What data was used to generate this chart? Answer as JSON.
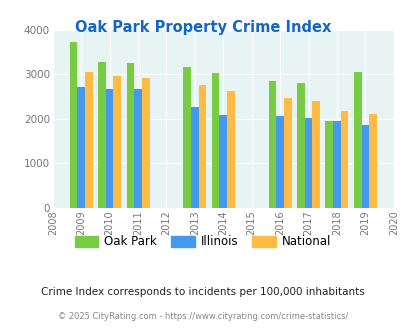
{
  "title": "Oak Park Property Crime Index",
  "subtitle": "Crime Index corresponds to incidents per 100,000 inhabitants",
  "footer": "© 2025 CityRating.com - https://www.cityrating.com/crime-statistics/",
  "years": [
    2009,
    2010,
    2011,
    2013,
    2014,
    2016,
    2017,
    2018,
    2019
  ],
  "oak_park": [
    3720,
    3280,
    3250,
    3160,
    3020,
    2850,
    2800,
    1940,
    3040
  ],
  "illinois": [
    2720,
    2660,
    2660,
    2260,
    2080,
    2060,
    2020,
    1950,
    1860
  ],
  "national": [
    3050,
    2950,
    2920,
    2750,
    2620,
    2470,
    2390,
    2180,
    2110
  ],
  "color_oak_park": "#77cc44",
  "color_illinois": "#4499ee",
  "color_national": "#ffbb44",
  "xlim": [
    2008,
    2020
  ],
  "ylim": [
    0,
    4000
  ],
  "yticks": [
    0,
    1000,
    2000,
    3000,
    4000
  ],
  "xticks": [
    2008,
    2009,
    2010,
    2011,
    2012,
    2013,
    2014,
    2015,
    2016,
    2017,
    2018,
    2019,
    2020
  ],
  "bg_color": "#e8f4f4",
  "title_color": "#1166cc",
  "subtitle_color": "#222222",
  "footer_color": "#888888",
  "bar_width": 0.27
}
